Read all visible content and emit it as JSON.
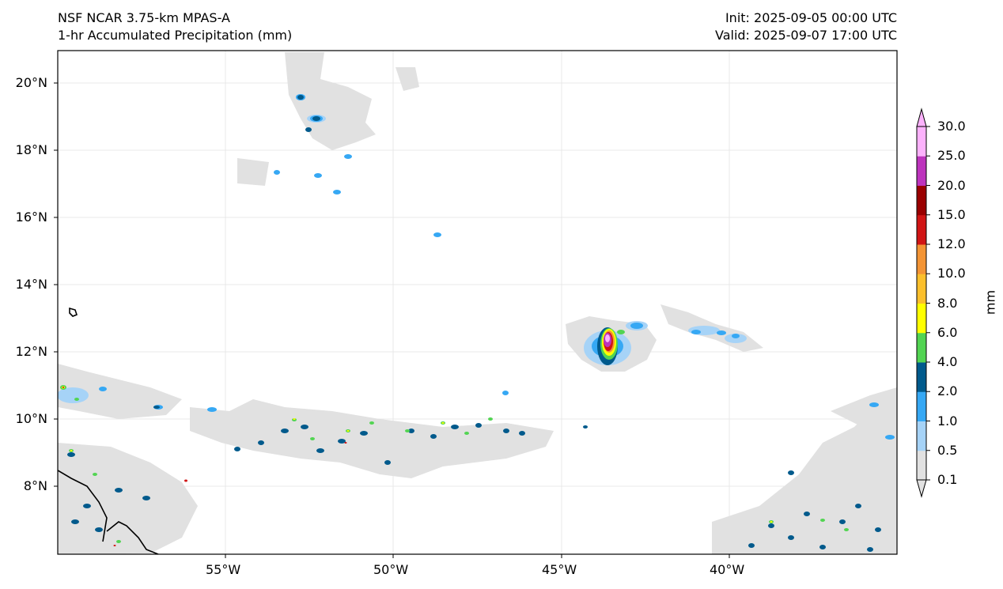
{
  "header": {
    "model": "NSF NCAR 3.75-km MPAS-A",
    "field": "1-hr Accumulated Precipitation (mm)",
    "init": "Init: 2025-09-05 00:00 UTC",
    "valid": "Valid: 2025-09-07 17:00 UTC"
  },
  "axes": {
    "lat_labels": [
      "20°N",
      "18°N",
      "16°N",
      "14°N",
      "12°N",
      "10°N",
      "8°N"
    ],
    "lon_labels": [
      "55°W",
      "50°W",
      "45°W",
      "40°W"
    ],
    "extent": {
      "lon_min": -60,
      "lon_max": -35,
      "lat_min": 6,
      "lat_max": 21
    }
  },
  "colorbar": {
    "unit": "mm",
    "levels": [
      "0.1",
      "0.5",
      "1.0",
      "2.0",
      "4.0",
      "6.0",
      "8.0",
      "10.0",
      "12.0",
      "15.0",
      "20.0",
      "25.0",
      "30.0"
    ],
    "colors": [
      "#e1e1e1",
      "#a6d3f7",
      "#36a8f4",
      "#005a8c",
      "#52d452",
      "#ffff00",
      "#fbbf2c",
      "#f39435",
      "#d11515",
      "#9a0000",
      "#bd34bd",
      "#fcb2fc"
    ]
  }
}
